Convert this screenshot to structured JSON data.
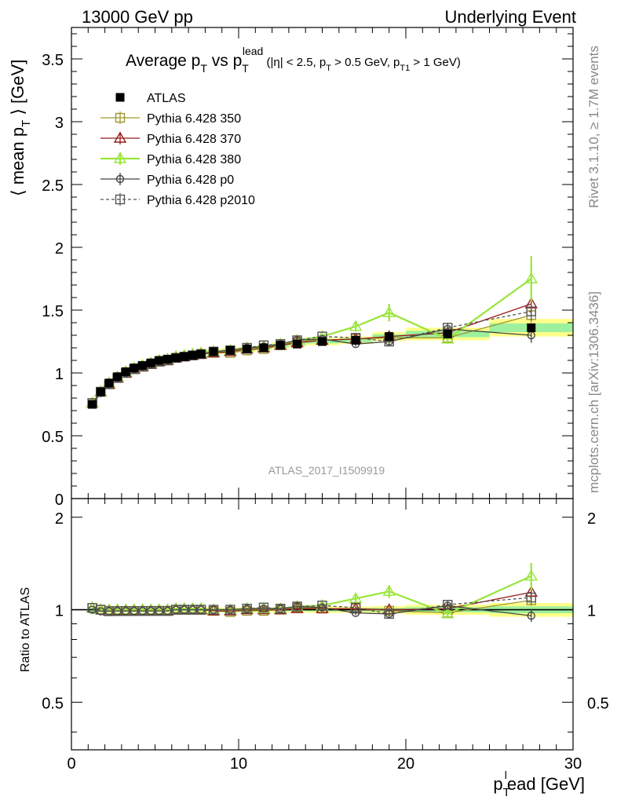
{
  "header": {
    "left": "13000 GeV pp",
    "right": "Underlying Event"
  },
  "side_labels": {
    "rivet": "Rivet 3.1.10, ≥ 1.7M events",
    "mcplots": "mcplots.cern.ch [arXiv:1306.3436]"
  },
  "chart_data": {
    "type": "scatter",
    "title_parts": {
      "prefix": "Average p",
      "sub1": "T",
      "vs": " vs p",
      "sub2": "T",
      "sup2": "lead",
      "cuts_open": " (|η| < 2.5, p",
      "cuts_sub1": "T",
      "cuts_mid": " > 0.5 GeV, p",
      "cuts_sub2": "T1",
      "cuts_close": " > 1 GeV)"
    },
    "ylabel_parts": {
      "open": "⟨ mean p",
      "sub": "T",
      "close": " ⟩ [GeV]"
    },
    "ratio_ylabel": "Ratio to ATLAS",
    "xlabel_parts": {
      "p": "p",
      "sub": "T",
      "sup": "l",
      "rest": "ead [GeV]"
    },
    "watermark": "ATLAS_2017_I1509919",
    "xlim": [
      0,
      30
    ],
    "ylim": [
      0,
      3.75
    ],
    "ratio_ylim": [
      0.35,
      2.3
    ],
    "main_yticks": [
      "0",
      "0.5",
      "1",
      "1.5",
      "2",
      "2.5",
      "3",
      "3.5"
    ],
    "ratio_yticks": [
      "0.5",
      "1",
      "2"
    ],
    "xticks": [
      "0",
      "10",
      "20",
      "30"
    ],
    "legend_position": "top-left",
    "x": [
      1.25,
      1.75,
      2.25,
      2.75,
      3.25,
      3.75,
      4.25,
      4.75,
      5.25,
      5.75,
      6.25,
      6.75,
      7.25,
      7.75,
      8.5,
      9.5,
      10.5,
      11.5,
      12.5,
      13.5,
      15.0,
      17.0,
      19.0,
      22.5,
      27.5
    ],
    "xerr": [
      0.25,
      0.25,
      0.25,
      0.25,
      0.25,
      0.25,
      0.25,
      0.25,
      0.25,
      0.25,
      0.25,
      0.25,
      0.25,
      0.25,
      0.5,
      0.5,
      0.5,
      0.5,
      0.5,
      0.5,
      1.0,
      1.0,
      1.0,
      2.5,
      2.5
    ],
    "series": [
      {
        "name": "ATLAS",
        "color": "#000000",
        "marker": "filled-square",
        "line": "none",
        "values": [
          0.75,
          0.85,
          0.92,
          0.97,
          1.01,
          1.04,
          1.06,
          1.08,
          1.1,
          1.11,
          1.12,
          1.13,
          1.14,
          1.15,
          1.17,
          1.18,
          1.19,
          1.2,
          1.22,
          1.23,
          1.25,
          1.26,
          1.29,
          1.31,
          1.36
        ],
        "band": [
          0.01,
          0.01,
          0.01,
          0.01,
          0.01,
          0.01,
          0.01,
          0.01,
          0.01,
          0.01,
          0.01,
          0.01,
          0.01,
          0.01,
          0.01,
          0.01,
          0.01,
          0.01,
          0.012,
          0.012,
          0.015,
          0.015,
          0.018,
          0.025,
          0.035
        ]
      },
      {
        "name": "Pythia 6.428 350",
        "color": "#a0962c",
        "marker": "open-square",
        "line": "solid",
        "values": [
          0.76,
          0.85,
          0.91,
          0.96,
          1.0,
          1.03,
          1.05,
          1.07,
          1.09,
          1.1,
          1.12,
          1.13,
          1.14,
          1.15,
          1.16,
          1.16,
          1.18,
          1.19,
          1.22,
          1.25,
          1.26,
          1.27,
          1.28,
          1.28,
          1.46
        ],
        "err": [
          0,
          0,
          0,
          0,
          0,
          0,
          0,
          0,
          0,
          0,
          0,
          0,
          0,
          0,
          0,
          0,
          0,
          0,
          0.01,
          0.01,
          0.015,
          0.02,
          0.025,
          0.03,
          0.06
        ]
      },
      {
        "name": "Pythia 6.428 370",
        "color": "#991a1a",
        "marker": "open-triangle",
        "line": "solid",
        "values": [
          0.76,
          0.85,
          0.91,
          0.96,
          1.0,
          1.03,
          1.05,
          1.07,
          1.09,
          1.1,
          1.12,
          1.13,
          1.14,
          1.15,
          1.16,
          1.17,
          1.19,
          1.2,
          1.22,
          1.24,
          1.26,
          1.27,
          1.29,
          1.32,
          1.55
        ],
        "err": [
          0,
          0,
          0,
          0,
          0,
          0,
          0,
          0,
          0,
          0,
          0,
          0,
          0,
          0,
          0,
          0,
          0,
          0,
          0.01,
          0.01,
          0.015,
          0.02,
          0.025,
          0.035,
          0.08
        ]
      },
      {
        "name": "Pythia 6.428 380",
        "color": "#99e53a",
        "marker": "open-triangle",
        "line": "solid",
        "values": [
          0.76,
          0.85,
          0.92,
          0.97,
          1.01,
          1.04,
          1.06,
          1.08,
          1.1,
          1.11,
          1.13,
          1.14,
          1.15,
          1.16,
          1.17,
          1.18,
          1.2,
          1.21,
          1.23,
          1.26,
          1.29,
          1.37,
          1.48,
          1.27,
          1.75
        ],
        "err": [
          0,
          0,
          0,
          0,
          0,
          0,
          0,
          0,
          0,
          0,
          0,
          0,
          0,
          0,
          0,
          0,
          0,
          0,
          0.01,
          0.01,
          0.02,
          0.04,
          0.07,
          0.04,
          0.18
        ]
      },
      {
        "name": "Pythia 6.428 p0",
        "color": "#444444",
        "marker": "open-circle",
        "line": "solid",
        "values": [
          0.75,
          0.84,
          0.91,
          0.96,
          1.0,
          1.03,
          1.05,
          1.07,
          1.09,
          1.1,
          1.12,
          1.13,
          1.14,
          1.15,
          1.17,
          1.18,
          1.2,
          1.21,
          1.23,
          1.26,
          1.27,
          1.23,
          1.25,
          1.35,
          1.3
        ],
        "err": [
          0,
          0,
          0,
          0,
          0,
          0,
          0,
          0,
          0,
          0,
          0,
          0,
          0,
          0,
          0,
          0,
          0,
          0,
          0.01,
          0.01,
          0.015,
          0.02,
          0.025,
          0.04,
          0.06
        ]
      },
      {
        "name": "Pythia 6.428 p2010",
        "color": "#555555",
        "marker": "open-square",
        "line": "dashed",
        "values": [
          0.76,
          0.85,
          0.91,
          0.96,
          1.0,
          1.03,
          1.05,
          1.07,
          1.09,
          1.1,
          1.12,
          1.13,
          1.14,
          1.15,
          1.17,
          1.18,
          1.2,
          1.22,
          1.23,
          1.26,
          1.29,
          1.28,
          1.25,
          1.36,
          1.49
        ],
        "err": [
          0,
          0,
          0,
          0,
          0,
          0,
          0,
          0,
          0,
          0,
          0,
          0,
          0,
          0,
          0,
          0,
          0,
          0,
          0.01,
          0.01,
          0.015,
          0.02,
          0.025,
          0.04,
          0.07
        ]
      }
    ]
  }
}
